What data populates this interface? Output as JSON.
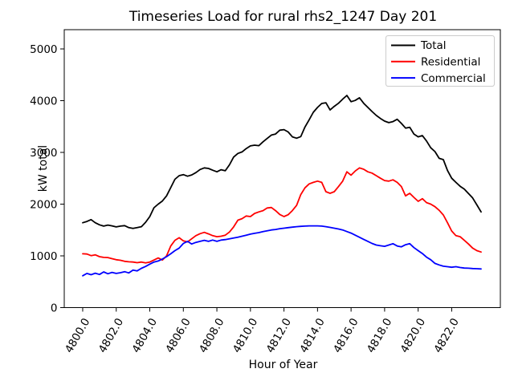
{
  "window": {
    "background": "#ffffff"
  },
  "chart_data": {
    "type": "line",
    "title": "Timeseries Load for rural rhs2_1247  Day 201",
    "xlabel": "Hour of Year",
    "ylabel": "kW total",
    "xlim": [
      4798.9,
      4824.9
    ],
    "ylim": [
      0,
      5372
    ],
    "grid": false,
    "x_ticks": [
      4800,
      4802,
      4804,
      4806,
      4808,
      4810,
      4812,
      4814,
      4816,
      4818,
      4820,
      4822
    ],
    "x_tick_labels": [
      "4800.0",
      "4802.0",
      "4804.0",
      "4806.0",
      "4808.0",
      "4810.0",
      "4812.0",
      "4814.0",
      "4816.0",
      "4818.0",
      "4820.0",
      "4822.0"
    ],
    "x_tick_rotation": -60,
    "y_ticks": [
      0,
      1000,
      2000,
      3000,
      4000,
      5000
    ],
    "y_tick_labels": [
      "0",
      "1000",
      "2000",
      "3000",
      "4000",
      "5000"
    ],
    "x_start": 4800.0,
    "x_step": 0.25,
    "legend": {
      "position": "upper right",
      "border_color": "#cccccc",
      "entries": [
        "Total",
        "Residential",
        "Commercial"
      ]
    },
    "series": [
      {
        "name": "Total",
        "color": "#000000",
        "values": [
          1640,
          1665,
          1700,
          1640,
          1600,
          1575,
          1595,
          1580,
          1560,
          1575,
          1585,
          1545,
          1530,
          1545,
          1565,
          1650,
          1760,
          1930,
          2000,
          2060,
          2160,
          2320,
          2480,
          2550,
          2570,
          2540,
          2565,
          2610,
          2670,
          2700,
          2690,
          2655,
          2625,
          2665,
          2645,
          2760,
          2910,
          2980,
          3010,
          3075,
          3125,
          3140,
          3130,
          3205,
          3270,
          3335,
          3355,
          3430,
          3440,
          3395,
          3300,
          3275,
          3305,
          3490,
          3630,
          3775,
          3870,
          3945,
          3960,
          3820,
          3890,
          3950,
          4030,
          4100,
          3980,
          4005,
          4055,
          3950,
          3870,
          3790,
          3715,
          3655,
          3605,
          3575,
          3595,
          3640,
          3560,
          3470,
          3485,
          3355,
          3300,
          3325,
          3220,
          3090,
          3015,
          2885,
          2860,
          2650,
          2500,
          2420,
          2345,
          2290,
          2205,
          2120,
          1985,
          1850
        ]
      },
      {
        "name": "Residential",
        "color": "#ff0000",
        "values": [
          1040,
          1035,
          1005,
          1020,
          985,
          970,
          968,
          945,
          925,
          915,
          895,
          885,
          880,
          868,
          880,
          865,
          880,
          920,
          960,
          920,
          1000,
          1190,
          1300,
          1350,
          1290,
          1270,
          1330,
          1390,
          1430,
          1455,
          1425,
          1390,
          1370,
          1380,
          1400,
          1460,
          1560,
          1690,
          1720,
          1770,
          1760,
          1820,
          1850,
          1875,
          1925,
          1935,
          1875,
          1800,
          1760,
          1795,
          1875,
          1975,
          2185,
          2315,
          2390,
          2420,
          2445,
          2420,
          2240,
          2210,
          2240,
          2340,
          2445,
          2625,
          2560,
          2640,
          2700,
          2675,
          2625,
          2600,
          2550,
          2500,
          2455,
          2445,
          2470,
          2420,
          2340,
          2160,
          2210,
          2130,
          2055,
          2105,
          2030,
          2000,
          1950,
          1880,
          1790,
          1640,
          1480,
          1390,
          1370,
          1300,
          1230,
          1150,
          1100,
          1075
        ]
      },
      {
        "name": "Commercial",
        "color": "#0000ff",
        "values": [
          615,
          660,
          635,
          665,
          640,
          690,
          655,
          680,
          660,
          675,
          695,
          670,
          725,
          710,
          760,
          795,
          840,
          880,
          900,
          940,
          985,
          1040,
          1100,
          1150,
          1240,
          1280,
          1230,
          1260,
          1280,
          1300,
          1280,
          1305,
          1280,
          1305,
          1315,
          1330,
          1345,
          1360,
          1380,
          1400,
          1420,
          1435,
          1450,
          1470,
          1485,
          1500,
          1510,
          1525,
          1535,
          1545,
          1555,
          1565,
          1570,
          1575,
          1580,
          1580,
          1580,
          1575,
          1565,
          1550,
          1535,
          1520,
          1500,
          1470,
          1440,
          1400,
          1360,
          1320,
          1280,
          1240,
          1210,
          1195,
          1185,
          1210,
          1235,
          1190,
          1175,
          1215,
          1235,
          1160,
          1100,
          1045,
          975,
          925,
          855,
          825,
          800,
          790,
          780,
          790,
          775,
          765,
          762,
          755,
          752,
          748
        ]
      }
    ]
  }
}
